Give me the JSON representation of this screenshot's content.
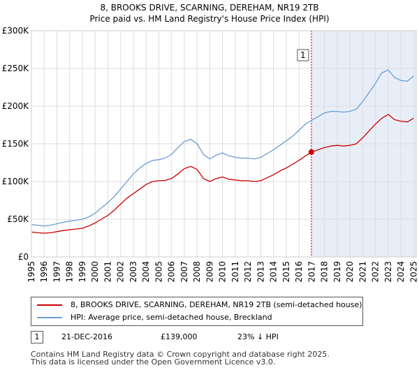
{
  "title_line1": "8, BROOKS DRIVE, SCARNING, DEREHAM, NR19 2TB",
  "title_line2": "Price paid vs. HM Land Registry's House Price Index (HPI)",
  "colors": {
    "property": "#cc0000",
    "hpi": "#6b9bd6",
    "shade": "#e8eef8",
    "grid": "#dddddd"
  },
  "legend": {
    "property_label": "8, BROOKS DRIVE, SCARNING, DEREHAM, NR19 2TB (semi-detached house)",
    "hpi_label": "HPI: Average price, semi-detached house, Breckland"
  },
  "annotation": {
    "number": "1",
    "date": "21-DEC-2016",
    "price": "£139,000",
    "hpi_delta": "23% ↓ HPI"
  },
  "footer": {
    "line1": "Contains HM Land Registry data © Crown copyright and database right 2025.",
    "line2": "This data is licensed under the Open Government Licence v3.0."
  },
  "chart_data": {
    "type": "line",
    "title": "8, BROOKS DRIVE, SCARNING, DEREHAM, NR19 2TB",
    "subtitle": "Price paid vs. HM Land Registry's House Price Index (HPI)",
    "xlabel": "",
    "ylabel": "",
    "xlim": [
      1995,
      2025.2
    ],
    "ylim": [
      0,
      300000
    ],
    "x_ticks": [
      "1995",
      "1996",
      "1997",
      "1998",
      "1999",
      "2000",
      "2001",
      "2002",
      "2003",
      "2004",
      "2005",
      "2006",
      "2007",
      "2008",
      "2009",
      "2010",
      "2011",
      "2012",
      "2013",
      "2014",
      "2015",
      "2016",
      "2017",
      "2018",
      "2019",
      "2020",
      "2021",
      "2022",
      "2023",
      "2024",
      "2025"
    ],
    "y_ticks": [
      {
        "value": 0,
        "label": "£0"
      },
      {
        "value": 50000,
        "label": "£50K"
      },
      {
        "value": 100000,
        "label": "£100K"
      },
      {
        "value": 150000,
        "label": "£150K"
      },
      {
        "value": 200000,
        "label": "£200K"
      },
      {
        "value": 250000,
        "label": "£250K"
      },
      {
        "value": 300000,
        "label": "£300K"
      }
    ],
    "grid": true,
    "legend_position": "below",
    "shaded_region": [
      2016.97,
      2025.2
    ],
    "marker": {
      "label": "1",
      "x": 2016.97,
      "y": 139000
    },
    "series": [
      {
        "name": "8, BROOKS DRIVE, SCARNING, DEREHAM, NR19 2TB (semi-detached house)",
        "color": "#cc0000",
        "x": [
          1995.0,
          1995.5,
          1996.0,
          1996.5,
          1997.0,
          1997.5,
          1998.0,
          1998.5,
          1999.0,
          1999.5,
          2000.0,
          2000.5,
          2001.0,
          2001.5,
          2002.0,
          2002.5,
          2003.0,
          2003.5,
          2004.0,
          2004.5,
          2005.0,
          2005.5,
          2006.0,
          2006.5,
          2007.0,
          2007.5,
          2008.0,
          2008.5,
          2009.0,
          2009.5,
          2010.0,
          2010.5,
          2011.0,
          2011.5,
          2012.0,
          2012.5,
          2013.0,
          2013.5,
          2014.0,
          2014.5,
          2015.0,
          2015.5,
          2016.0,
          2016.5,
          2016.97,
          2017.5,
          2018.0,
          2018.5,
          2019.0,
          2019.5,
          2020.0,
          2020.5,
          2021.0,
          2021.5,
          2022.0,
          2022.5,
          2023.0,
          2023.5,
          2024.0,
          2024.5,
          2025.0
        ],
        "y": [
          33000,
          32000,
          31500,
          32000,
          33500,
          35000,
          36000,
          37000,
          38000,
          41000,
          45000,
          50000,
          55000,
          62000,
          70000,
          78000,
          84000,
          90000,
          96000,
          100000,
          101000,
          101500,
          104000,
          110000,
          117000,
          120000,
          116000,
          104000,
          100000,
          104000,
          106000,
          103000,
          102000,
          101000,
          101000,
          100000,
          101000,
          105000,
          109000,
          114000,
          118000,
          123000,
          128000,
          134000,
          139000,
          142000,
          145000,
          147000,
          148000,
          147000,
          148000,
          150000,
          158000,
          167000,
          176000,
          184000,
          189000,
          182000,
          180000,
          179000,
          184000
        ]
      },
      {
        "name": "HPI: Average price, semi-detached house, Breckland",
        "color": "#6b9bd6",
        "x": [
          1995.0,
          1995.5,
          1996.0,
          1996.5,
          1997.0,
          1997.5,
          1998.0,
          1998.5,
          1999.0,
          1999.5,
          2000.0,
          2000.5,
          2001.0,
          2001.5,
          2002.0,
          2002.5,
          2003.0,
          2003.5,
          2004.0,
          2004.5,
          2005.0,
          2005.5,
          2006.0,
          2006.5,
          2007.0,
          2007.5,
          2008.0,
          2008.5,
          2009.0,
          2009.5,
          2010.0,
          2010.5,
          2011.0,
          2011.5,
          2012.0,
          2012.5,
          2013.0,
          2013.5,
          2014.0,
          2014.5,
          2015.0,
          2015.5,
          2016.0,
          2016.5,
          2016.97,
          2017.5,
          2018.0,
          2018.5,
          2019.0,
          2019.5,
          2020.0,
          2020.5,
          2021.0,
          2021.5,
          2022.0,
          2022.5,
          2023.0,
          2023.5,
          2024.0,
          2024.5,
          2025.0
        ],
        "y": [
          43000,
          42000,
          41000,
          42000,
          44000,
          46000,
          47500,
          48500,
          50000,
          53000,
          58000,
          65000,
          72000,
          80000,
          90000,
          100000,
          110000,
          118000,
          124000,
          128000,
          129000,
          131000,
          136000,
          145000,
          153000,
          156000,
          150000,
          136000,
          130000,
          135000,
          138000,
          134000,
          132000,
          131000,
          131000,
          130000,
          132000,
          137000,
          142000,
          148000,
          154000,
          160000,
          168000,
          176000,
          181000,
          186000,
          191000,
          193000,
          193000,
          192000,
          193000,
          196000,
          206000,
          218000,
          230000,
          244000,
          248000,
          238000,
          234000,
          233000,
          240000
        ]
      }
    ]
  }
}
